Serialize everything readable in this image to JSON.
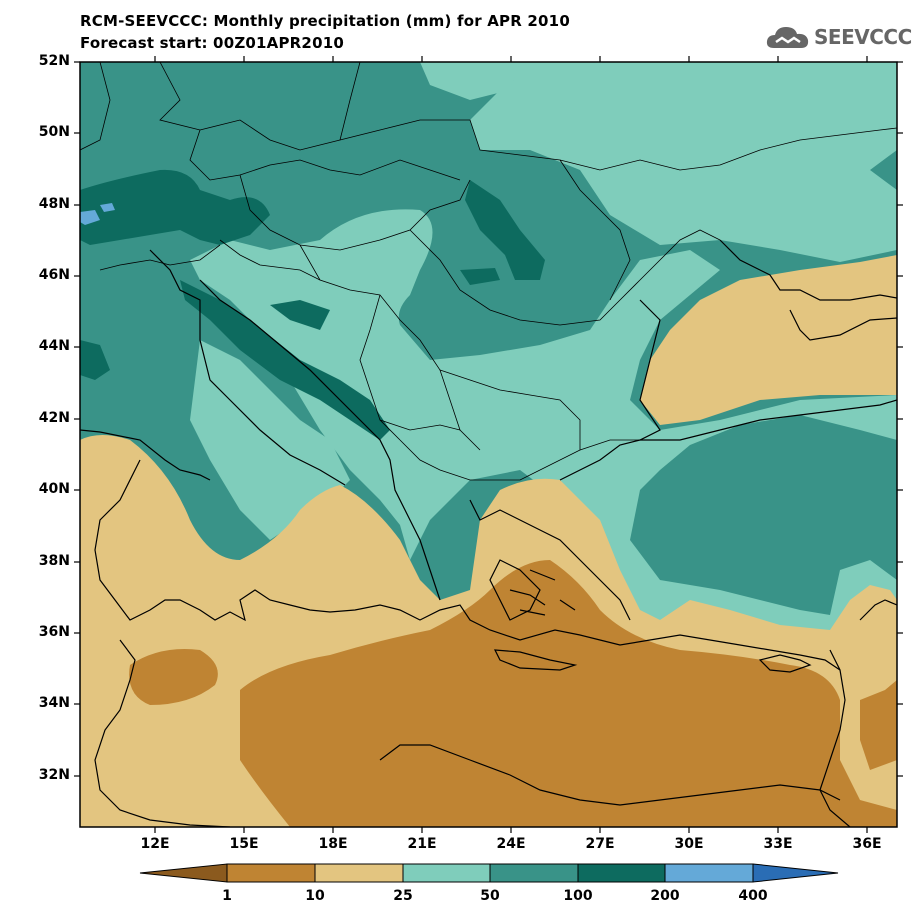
{
  "header": {
    "title": "RCM-SEEVCCC: Monthly precipitation (mm) for APR 2010",
    "subtitle": "Forecast start: 00Z01APR2010",
    "logo_text": "SEEVCCC"
  },
  "map": {
    "lat_ticks": [
      "52N",
      "50N",
      "48N",
      "46N",
      "44N",
      "42N",
      "40N",
      "38N",
      "36N",
      "34N",
      "32N"
    ],
    "lon_ticks": [
      "12E",
      "15E",
      "18E",
      "21E",
      "24E",
      "27E",
      "30E",
      "33E",
      "36E"
    ],
    "lat_range": [
      30.5,
      52
    ],
    "lon_range": [
      9.5,
      37
    ]
  },
  "legend": {
    "thresholds": [
      "1",
      "10",
      "25",
      "50",
      "100",
      "200",
      "400"
    ],
    "colors": [
      "#8b5a1e",
      "#bf8433",
      "#e3c580",
      "#7fcdbb",
      "#399388",
      "#0d6b5f",
      "#64a9d8",
      "#2a6db5"
    ]
  }
}
